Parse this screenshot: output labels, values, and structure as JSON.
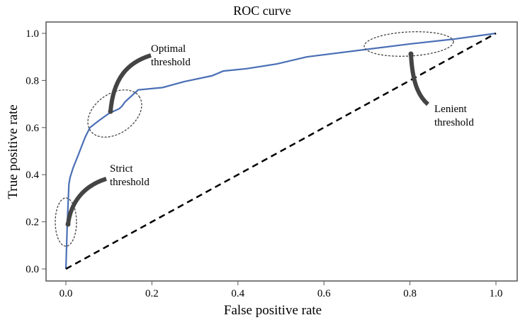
{
  "chart_data": {
    "type": "line",
    "title": "ROC curve",
    "xlabel": "False positive rate",
    "ylabel": "True positive rate",
    "xlim": [
      0,
      1
    ],
    "ylim": [
      0,
      1
    ],
    "xticks": [
      "0.0",
      "0.2",
      "0.4",
      "0.6",
      "0.8",
      "1.0"
    ],
    "yticks": [
      "0.0",
      "0.2",
      "0.4",
      "0.6",
      "0.8",
      "1.0"
    ],
    "grid": false,
    "series": [
      {
        "color": "#4a6fb5",
        "x": [
          0,
          0.002,
          0.003,
          0.007,
          0.01,
          0.017,
          0.028,
          0.045,
          0.056,
          0.077,
          0.1,
          0.124,
          0.13,
          0.138,
          0.15,
          0.168,
          0.225,
          0.275,
          0.34,
          0.366,
          0.42,
          0.49,
          0.56,
          0.69,
          0.8,
          0.9,
          1.0
        ],
        "y": [
          0,
          0.117,
          0.18,
          0.36,
          0.39,
          0.43,
          0.48,
          0.56,
          0.6,
          0.63,
          0.66,
          0.68,
          0.69,
          0.71,
          0.73,
          0.76,
          0.77,
          0.795,
          0.82,
          0.84,
          0.85,
          0.87,
          0.9,
          0.93,
          0.955,
          0.975,
          1.0
        ]
      },
      {
        "color": "#000000",
        "style": "dashed",
        "x": [
          0,
          1
        ],
        "y": [
          0,
          1
        ]
      }
    ],
    "annotations": [
      {
        "text": [
          "Strict",
          "threshold"
        ],
        "x": 0.005,
        "y": 0.2
      },
      {
        "text": [
          "Optimal",
          "threshold"
        ],
        "x": 0.1,
        "y": 0.66
      },
      {
        "text": [
          "Lenient",
          "threshold"
        ],
        "x": 0.8,
        "y": 0.955
      }
    ]
  }
}
